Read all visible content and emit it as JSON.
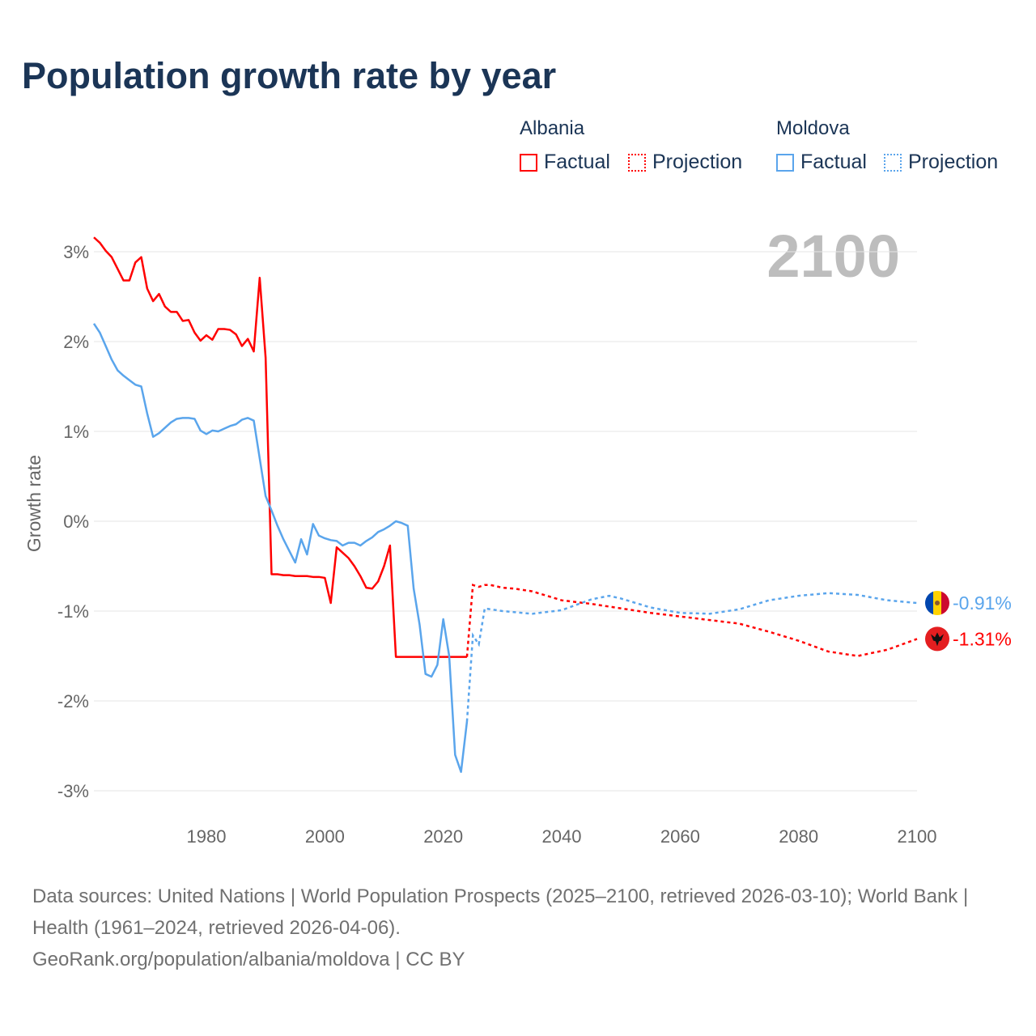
{
  "title": "Population growth rate by year",
  "legend": {
    "groups": [
      {
        "name": "Albania",
        "factual": "Factual",
        "projection": "Projection",
        "color": "#ff0000"
      },
      {
        "name": "Moldova",
        "factual": "Factual",
        "projection": "Projection",
        "color": "#5aa5ec"
      }
    ]
  },
  "year_label": "2100",
  "footer": {
    "sources": "Data sources: United Nations | World Population Prospects (2025–2100, retrieved 2026-03-10); World Bank | Health (1961–2024, retrieved 2026-04-06).",
    "link": "GeoRank.org/population/albania/moldova | CC BY"
  },
  "chart_data": {
    "type": "line",
    "title": "Population growth rate by year",
    "xlabel": "",
    "ylabel": "Growth rate",
    "xlim": [
      1961,
      2100
    ],
    "ylim": [
      -3.3,
      3.3
    ],
    "x_ticks": [
      1980,
      2000,
      2020,
      2040,
      2060,
      2080,
      2100
    ],
    "y_ticks": [
      3,
      2,
      1,
      0,
      -1,
      -2,
      -3
    ],
    "y_tick_labels": [
      "3%",
      "2%",
      "1%",
      "0%",
      "-1%",
      "-2%",
      "-3%"
    ],
    "grid": true,
    "legend_position": "top-right",
    "series": [
      {
        "name": "Albania",
        "color": "#ff0000",
        "end_label": "-1.31%",
        "factual": {
          "x": [
            1961,
            1962,
            1963,
            1964,
            1965,
            1966,
            1967,
            1968,
            1969,
            1970,
            1971,
            1972,
            1973,
            1974,
            1975,
            1976,
            1977,
            1978,
            1979,
            1980,
            1981,
            1982,
            1983,
            1984,
            1985,
            1986,
            1987,
            1988,
            1989,
            1990,
            1991,
            1992,
            1993,
            1994,
            1995,
            1996,
            1997,
            1998,
            1999,
            2000,
            2001,
            2002,
            2003,
            2004,
            2005,
            2006,
            2007,
            2008,
            2009,
            2010,
            2011,
            2012,
            2013,
            2014,
            2015,
            2016,
            2017,
            2018,
            2019,
            2020,
            2021,
            2022,
            2023,
            2024
          ],
          "y": [
            3.16,
            3.1,
            3.01,
            2.94,
            2.81,
            2.68,
            2.68,
            2.88,
            2.94,
            2.59,
            2.45,
            2.53,
            2.39,
            2.33,
            2.33,
            2.23,
            2.24,
            2.1,
            2.01,
            2.07,
            2.02,
            2.14,
            2.14,
            2.13,
            2.08,
            1.95,
            2.03,
            1.89,
            2.71,
            1.82,
            -0.59,
            -0.59,
            -0.6,
            -0.6,
            -0.61,
            -0.61,
            -0.61,
            -0.62,
            -0.62,
            -0.63,
            -0.91,
            -0.29,
            -0.35,
            -0.41,
            -0.5,
            -0.61,
            -0.74,
            -0.75,
            -0.67,
            -0.5,
            -0.27,
            -1.51,
            -1.51,
            -1.51,
            -1.51,
            -1.51,
            -1.51,
            -1.51,
            -1.51,
            -1.51,
            -1.51,
            -1.51,
            -1.51,
            -1.51
          ]
        },
        "projection": {
          "x": [
            2025,
            2026,
            2027,
            2028,
            2030,
            2032,
            2035,
            2038,
            2040,
            2045,
            2048,
            2050,
            2055,
            2060,
            2065,
            2070,
            2075,
            2080,
            2085,
            2090,
            2095,
            2100
          ],
          "y": [
            -0.71,
            -0.73,
            -0.71,
            -0.71,
            -0.74,
            -0.75,
            -0.78,
            -0.84,
            -0.88,
            -0.92,
            -0.95,
            -0.97,
            -1.02,
            -1.06,
            -1.1,
            -1.14,
            -1.23,
            -1.33,
            -1.45,
            -1.5,
            -1.43,
            -1.31
          ]
        }
      },
      {
        "name": "Moldova",
        "color": "#5aa5ec",
        "end_label": "-0.91%",
        "factual": {
          "x": [
            1961,
            1962,
            1963,
            1964,
            1965,
            1966,
            1967,
            1968,
            1969,
            1970,
            1971,
            1972,
            1973,
            1974,
            1975,
            1976,
            1977,
            1978,
            1979,
            1980,
            1981,
            1982,
            1983,
            1984,
            1985,
            1986,
            1987,
            1988,
            1989,
            1990,
            1991,
            1992,
            1993,
            1994,
            1995,
            1996,
            1997,
            1998,
            1999,
            2000,
            2001,
            2002,
            2003,
            2004,
            2005,
            2006,
            2007,
            2008,
            2009,
            2010,
            2011,
            2012,
            2013,
            2014,
            2015,
            2016,
            2017,
            2018,
            2019,
            2020,
            2021,
            2022,
            2023,
            2024
          ],
          "y": [
            2.2,
            2.1,
            1.95,
            1.8,
            1.68,
            1.62,
            1.57,
            1.52,
            1.5,
            1.2,
            0.94,
            0.98,
            1.04,
            1.1,
            1.14,
            1.15,
            1.15,
            1.14,
            1.01,
            0.97,
            1.01,
            1.0,
            1.03,
            1.06,
            1.08,
            1.13,
            1.15,
            1.12,
            0.7,
            0.28,
            0.12,
            -0.05,
            -0.2,
            -0.33,
            -0.46,
            -0.2,
            -0.37,
            -0.03,
            -0.16,
            -0.19,
            -0.21,
            -0.22,
            -0.27,
            -0.24,
            -0.24,
            -0.27,
            -0.22,
            -0.18,
            -0.12,
            -0.09,
            -0.05,
            0.0,
            -0.02,
            -0.05,
            -0.75,
            -1.15,
            -1.7,
            -1.73,
            -1.6,
            -1.09,
            -1.5,
            -2.6,
            -2.79,
            -2.23
          ]
        },
        "projection": {
          "x": [
            2025,
            2026,
            2027,
            2028,
            2030,
            2035,
            2040,
            2045,
            2048,
            2050,
            2055,
            2060,
            2065,
            2070,
            2075,
            2080,
            2085,
            2090,
            2095,
            2100
          ],
          "y": [
            -1.27,
            -1.37,
            -0.97,
            -0.98,
            -1.0,
            -1.03,
            -0.99,
            -0.87,
            -0.83,
            -0.86,
            -0.96,
            -1.02,
            -1.03,
            -0.98,
            -0.88,
            -0.83,
            -0.8,
            -0.82,
            -0.88,
            -0.91
          ]
        }
      }
    ]
  }
}
